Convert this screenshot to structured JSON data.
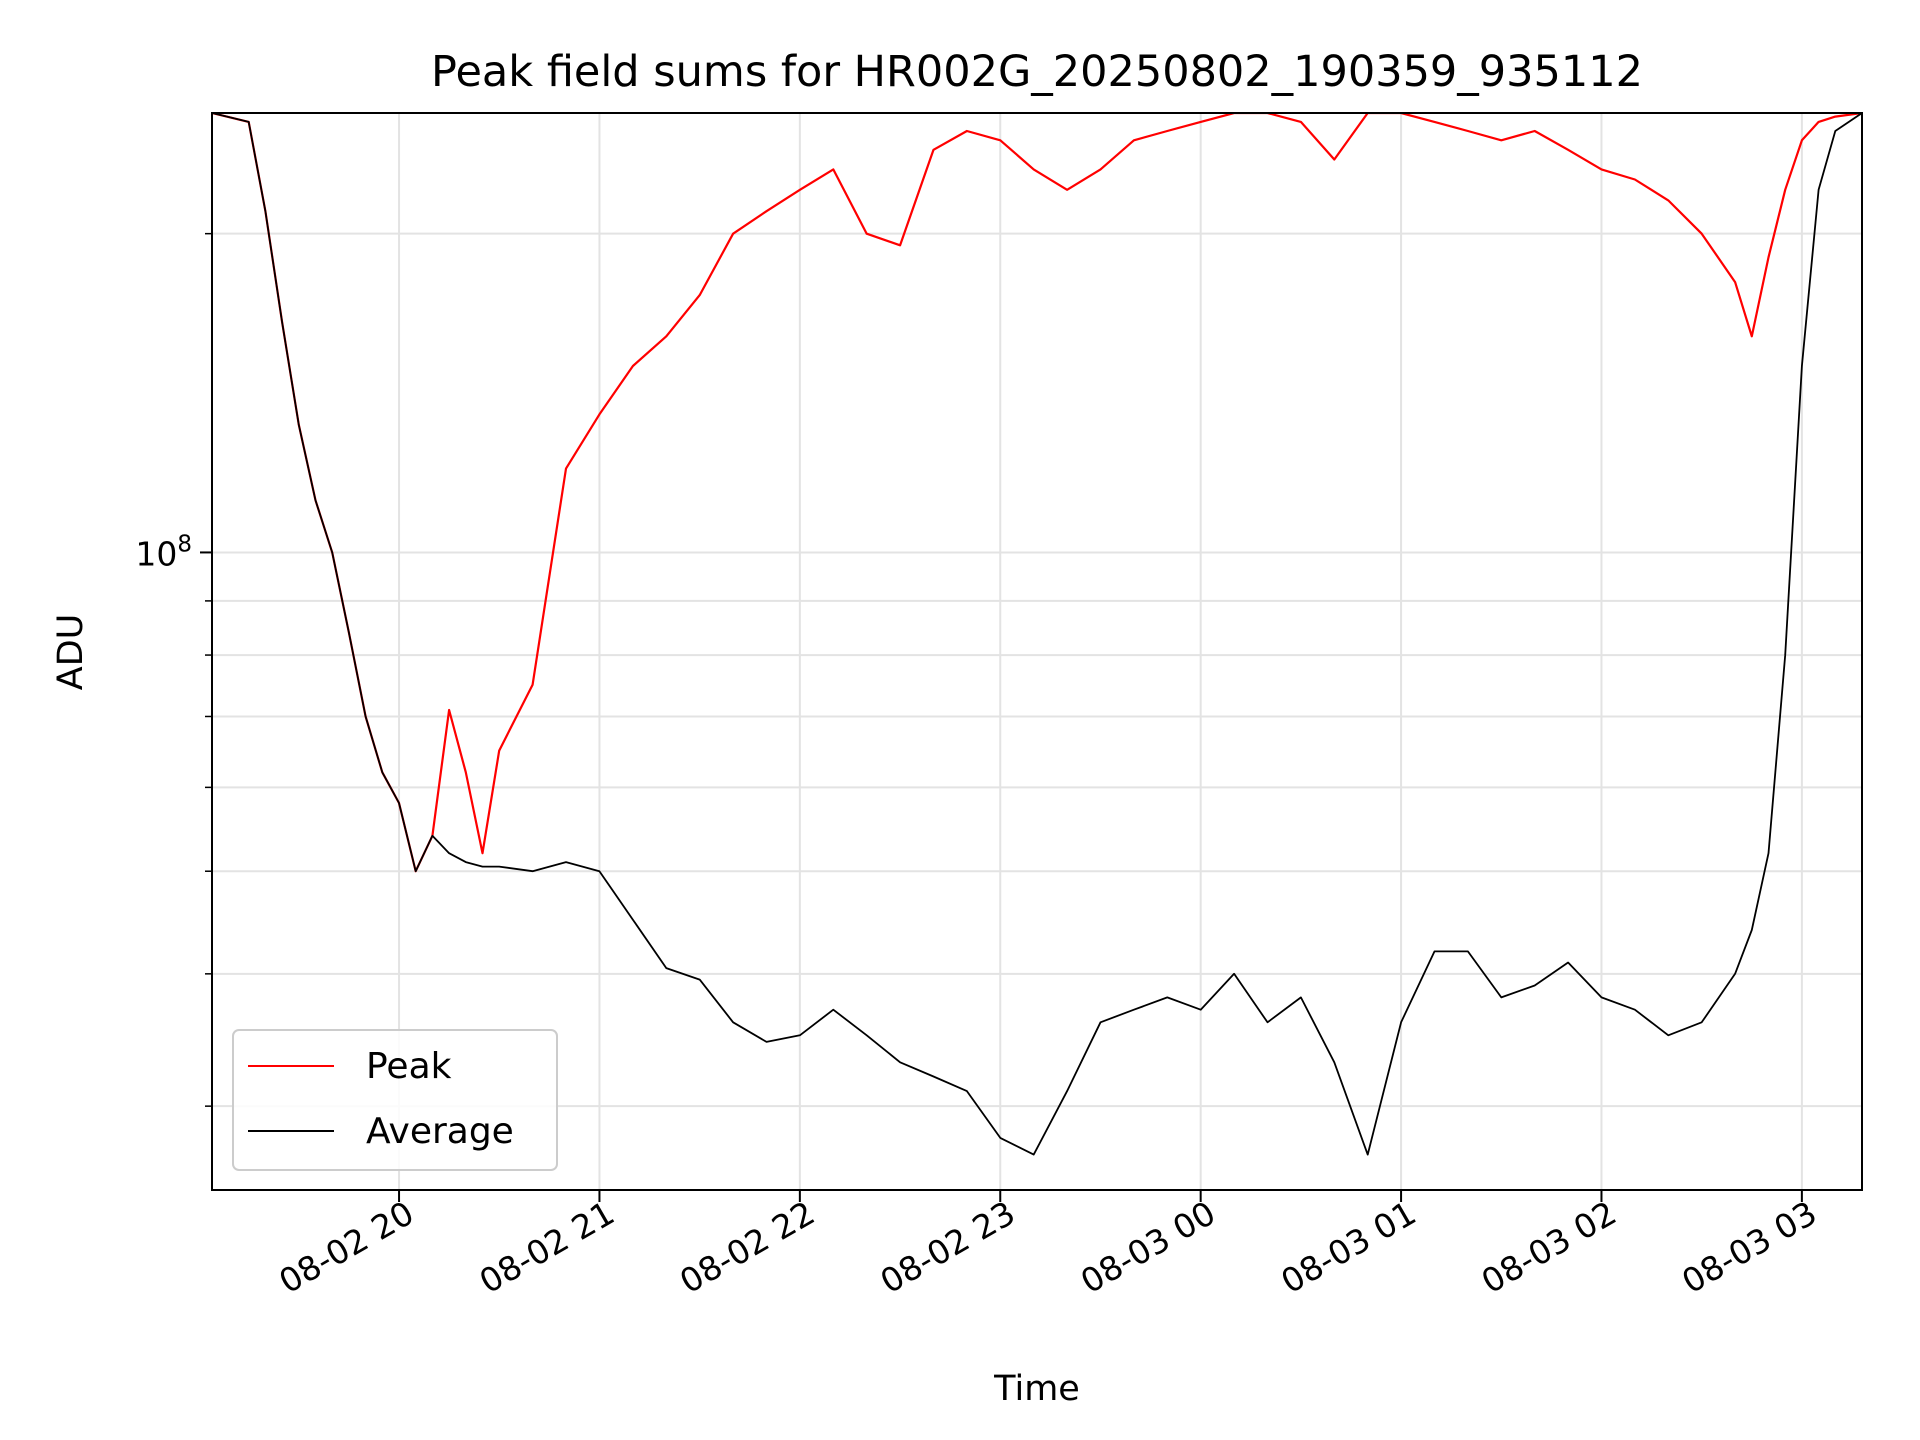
{
  "chart_data": {
    "type": "line",
    "title": "Peak field sums for HR002G_20250802_190359_935112",
    "xlabel": "Time",
    "ylabel": "ADU",
    "y_scale": "log",
    "grid": true,
    "legend_position": "lower-left",
    "x_range": [
      "2025-08-02 19:04",
      "2025-08-03 03:18"
    ],
    "ylim": [
      25000000,
      260000000
    ],
    "x_ticks": [
      "08-02 20",
      "08-02 21",
      "08-02 22",
      "08-02 23",
      "08-03 00",
      "08-03 01",
      "08-03 02",
      "08-03 03"
    ],
    "x_tick_values": [
      "2025-08-02 20:00",
      "2025-08-02 21:00",
      "2025-08-02 22:00",
      "2025-08-02 23:00",
      "2025-08-03 00:00",
      "2025-08-03 01:00",
      "2025-08-03 02:00",
      "2025-08-03 03:00"
    ],
    "y_major_ticks": [
      {
        "value": 100000000,
        "mantissa": "10",
        "exponent": "8"
      }
    ],
    "y_minor_ticks": [
      30000000,
      40000000,
      50000000,
      60000000,
      70000000,
      80000000,
      90000000,
      200000000
    ],
    "series": [
      {
        "name": "Peak",
        "color": "#ff0000",
        "x": [
          "2025-08-02 19:04",
          "2025-08-02 19:15",
          "2025-08-02 19:20",
          "2025-08-02 19:25",
          "2025-08-02 19:30",
          "2025-08-02 19:35",
          "2025-08-02 19:40",
          "2025-08-02 19:45",
          "2025-08-02 19:50",
          "2025-08-02 19:55",
          "2025-08-02 20:00",
          "2025-08-02 20:05",
          "2025-08-02 20:10",
          "2025-08-02 20:15",
          "2025-08-02 20:20",
          "2025-08-02 20:25",
          "2025-08-02 20:30",
          "2025-08-02 20:40",
          "2025-08-02 20:50",
          "2025-08-02 21:00",
          "2025-08-02 21:10",
          "2025-08-02 21:20",
          "2025-08-02 21:30",
          "2025-08-02 21:40",
          "2025-08-02 21:50",
          "2025-08-02 22:00",
          "2025-08-02 22:10",
          "2025-08-02 22:20",
          "2025-08-02 22:30",
          "2025-08-02 22:40",
          "2025-08-02 22:50",
          "2025-08-02 23:00",
          "2025-08-02 23:10",
          "2025-08-02 23:20",
          "2025-08-02 23:30",
          "2025-08-02 23:40",
          "2025-08-02 23:50",
          "2025-08-03 00:00",
          "2025-08-03 00:10",
          "2025-08-03 00:20",
          "2025-08-03 00:30",
          "2025-08-03 00:40",
          "2025-08-03 00:50",
          "2025-08-03 01:00",
          "2025-08-03 01:10",
          "2025-08-03 01:20",
          "2025-08-03 01:30",
          "2025-08-03 01:40",
          "2025-08-03 01:50",
          "2025-08-03 02:00",
          "2025-08-03 02:10",
          "2025-08-03 02:20",
          "2025-08-03 02:30",
          "2025-08-03 02:40",
          "2025-08-03 02:45",
          "2025-08-03 02:50",
          "2025-08-03 02:55",
          "2025-08-03 03:00",
          "2025-08-03 03:05",
          "2025-08-03 03:10",
          "2025-08-03 03:18"
        ],
        "values": [
          260000000,
          255000000,
          210000000,
          165000000,
          132000000,
          112000000,
          100000000,
          84000000,
          70000000,
          62000000,
          58000000,
          50000000,
          54000000,
          71000000,
          62000000,
          52000000,
          65000000,
          75000000,
          120000000,
          135000000,
          150000000,
          160000000,
          175000000,
          200000000,
          210000000,
          220000000,
          230000000,
          200000000,
          195000000,
          240000000,
          250000000,
          245000000,
          230000000,
          220000000,
          230000000,
          245000000,
          250000000,
          255000000,
          260000000,
          260000000,
          255000000,
          235000000,
          260000000,
          260000000,
          255000000,
          250000000,
          245000000,
          250000000,
          240000000,
          230000000,
          225000000,
          215000000,
          200000000,
          180000000,
          160000000,
          190000000,
          220000000,
          245000000,
          255000000,
          258000000,
          260000000
        ]
      },
      {
        "name": "Average",
        "color": "#000000",
        "x": [
          "2025-08-02 19:04",
          "2025-08-02 19:15",
          "2025-08-02 19:20",
          "2025-08-02 19:25",
          "2025-08-02 19:30",
          "2025-08-02 19:35",
          "2025-08-02 19:40",
          "2025-08-02 19:45",
          "2025-08-02 19:50",
          "2025-08-02 19:55",
          "2025-08-02 20:00",
          "2025-08-02 20:05",
          "2025-08-02 20:10",
          "2025-08-02 20:15",
          "2025-08-02 20:20",
          "2025-08-02 20:25",
          "2025-08-02 20:30",
          "2025-08-02 20:40",
          "2025-08-02 20:50",
          "2025-08-02 21:00",
          "2025-08-02 21:10",
          "2025-08-02 21:20",
          "2025-08-02 21:30",
          "2025-08-02 21:40",
          "2025-08-02 21:50",
          "2025-08-02 22:00",
          "2025-08-02 22:10",
          "2025-08-02 22:20",
          "2025-08-02 22:30",
          "2025-08-02 22:40",
          "2025-08-02 22:50",
          "2025-08-02 23:00",
          "2025-08-02 23:10",
          "2025-08-02 23:20",
          "2025-08-02 23:30",
          "2025-08-02 23:40",
          "2025-08-02 23:50",
          "2025-08-03 00:00",
          "2025-08-03 00:10",
          "2025-08-03 00:20",
          "2025-08-03 00:30",
          "2025-08-03 00:40",
          "2025-08-03 00:50",
          "2025-08-03 01:00",
          "2025-08-03 01:10",
          "2025-08-03 01:20",
          "2025-08-03 01:30",
          "2025-08-03 01:40",
          "2025-08-03 01:50",
          "2025-08-03 02:00",
          "2025-08-03 02:10",
          "2025-08-03 02:20",
          "2025-08-03 02:30",
          "2025-08-03 02:40",
          "2025-08-03 02:45",
          "2025-08-03 02:50",
          "2025-08-03 02:55",
          "2025-08-03 03:00",
          "2025-08-03 03:05",
          "2025-08-03 03:10",
          "2025-08-03 03:18"
        ],
        "values": [
          260000000,
          255000000,
          210000000,
          165000000,
          132000000,
          112000000,
          100000000,
          84000000,
          70000000,
          62000000,
          58000000,
          50000000,
          54000000,
          52000000,
          51000000,
          50500000,
          50500000,
          50000000,
          51000000,
          50000000,
          45000000,
          40500000,
          39500000,
          36000000,
          34500000,
          35000000,
          37000000,
          35000000,
          33000000,
          32000000,
          31000000,
          28000000,
          27000000,
          31000000,
          36000000,
          37000000,
          38000000,
          37000000,
          40000000,
          36000000,
          38000000,
          33000000,
          27000000,
          36000000,
          42000000,
          42000000,
          38000000,
          39000000,
          41000000,
          38000000,
          37000000,
          35000000,
          36000000,
          40000000,
          44000000,
          52000000,
          80000000,
          150000000,
          220000000,
          250000000,
          260000000
        ]
      }
    ]
  }
}
